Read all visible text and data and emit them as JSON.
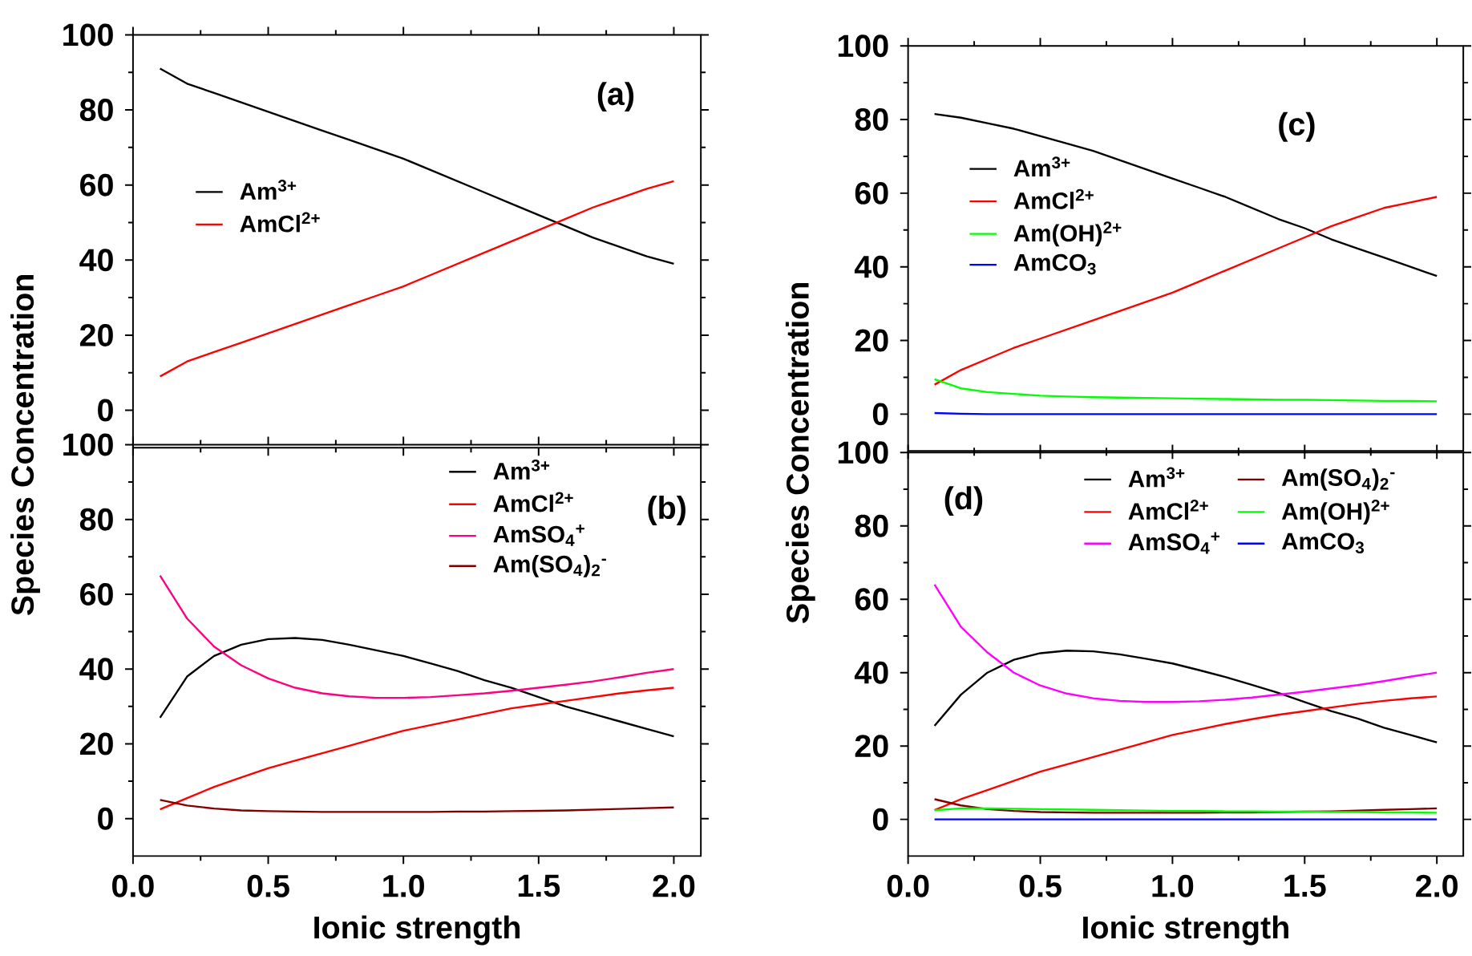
{
  "chart_data": [
    {
      "type": "line",
      "xlim": [
        0,
        2.1
      ],
      "ylim": [
        -10,
        100
      ],
      "tick_labels": "y",
      "legend": "left",
      "xticks": [
        {
          "value": 0,
          "label": null
        },
        {
          "value": 0.5,
          "label": null
        },
        {
          "value": 1,
          "label": null
        },
        {
          "value": 1.5,
          "label": null
        },
        {
          "value": 2,
          "label": null
        }
      ],
      "yticks": [
        0,
        20,
        40,
        60,
        80,
        100
      ],
      "annotations": [
        "(a)"
      ],
      "x": [
        0.1,
        0.2,
        0.3,
        0.4,
        0.5,
        0.6,
        0.7,
        0.8,
        0.9,
        1.0,
        1.1,
        1.2,
        1.3,
        1.4,
        1.5,
        1.6,
        1.7,
        1.8,
        1.9,
        2.0
      ],
      "series": [
        {
          "name": "Am$^{3+}$",
          "color": "#000000",
          "values": [
            91,
            87,
            84.5,
            82,
            79.5,
            77,
            74.5,
            72,
            69.5,
            67,
            64,
            61,
            58,
            55,
            52,
            49,
            46,
            43.5,
            41,
            39
          ]
        },
        {
          "name": "AmCl$^{2+}$",
          "color": "#ff0000",
          "values": [
            9,
            13,
            15.5,
            18,
            20.5,
            23,
            25.5,
            28,
            30.5,
            33,
            36,
            39,
            42,
            45,
            48,
            51,
            54,
            56.5,
            59,
            61
          ]
        }
      ]
    },
    {
      "type": "line",
      "xlim": [
        0,
        2.1
      ],
      "ylim": [
        -10,
        100
      ],
      "legend": "top right",
      "xlabel": "Ionic strength",
      "ylabel": "Species Concentration",
      "xticks": [
        {
          "value": 0,
          "label": "0.0"
        },
        {
          "value": 0.5,
          "label": "0.5"
        },
        {
          "value": 1,
          "label": "1.0"
        },
        {
          "value": 1.5,
          "label": "1.5"
        },
        {
          "value": 2,
          "label": "2.0"
        }
      ],
      "yticks": [
        0,
        20,
        40,
        60,
        80,
        100
      ],
      "annotations": [
        "(b)"
      ],
      "x": [
        0.1,
        0.2,
        0.3,
        0.4,
        0.5,
        0.6,
        0.7,
        0.8,
        0.9,
        1.0,
        1.1,
        1.2,
        1.3,
        1.4,
        1.5,
        1.6,
        1.7,
        1.8,
        1.9,
        2.0
      ],
      "series": [
        {
          "name": "Am$^{3+}$",
          "color": "#000000",
          "values": [
            27,
            38,
            43.5,
            46.5,
            48,
            48.3,
            47.8,
            46.5,
            45,
            43.5,
            41.5,
            39.5,
            37,
            35,
            32.5,
            30,
            28,
            26,
            24,
            22
          ]
        },
        {
          "name": "AmCl$^{2+}$",
          "color": "#ff0000",
          "values": [
            2.5,
            5.5,
            8.5,
            11,
            13.5,
            15.5,
            17.5,
            19.5,
            21.5,
            23.5,
            25,
            26.5,
            28,
            29.5,
            30.5,
            31.5,
            32.5,
            33.5,
            34.3,
            35
          ]
        },
        {
          "name": "AmSO$_{4}$$^{+}$",
          "color": "#ff0080",
          "values": [
            65,
            53.5,
            46,
            41,
            37.5,
            35,
            33.5,
            32.7,
            32.3,
            32.3,
            32.5,
            33,
            33.5,
            34.2,
            35,
            35.8,
            36.7,
            37.8,
            39,
            40
          ]
        },
        {
          "name": "Am(SO$_{4}$)$_{2}$$^{-}$",
          "color": "#800000",
          "values": [
            5,
            3.5,
            2.7,
            2.2,
            2,
            1.9,
            1.8,
            1.8,
            1.8,
            1.8,
            1.8,
            1.9,
            1.9,
            2,
            2.1,
            2.2,
            2.4,
            2.6,
            2.8,
            3
          ]
        }
      ]
    },
    {
      "type": "line",
      "xlim": [
        0,
        2.1
      ],
      "ylim": [
        -10,
        100
      ],
      "tick_labels": "y",
      "legend": "left",
      "xticks": [
        {
          "value": 0,
          "label": null
        },
        {
          "value": 0.5,
          "label": null
        },
        {
          "value": 1,
          "label": null
        },
        {
          "value": 1.5,
          "label": null
        },
        {
          "value": 2,
          "label": null
        }
      ],
      "yticks": [
        0,
        20,
        40,
        60,
        80,
        100
      ],
      "annotations": [
        "(c)"
      ],
      "x": [
        0.1,
        0.2,
        0.3,
        0.4,
        0.5,
        0.6,
        0.7,
        0.8,
        0.9,
        1.0,
        1.1,
        1.2,
        1.3,
        1.4,
        1.5,
        1.6,
        1.7,
        1.8,
        1.9,
        2.0
      ],
      "series": [
        {
          "name": "Am$^{3+}$",
          "color": "#000000",
          "values": [
            81.5,
            80.5,
            79,
            77.5,
            75.5,
            73.5,
            71.5,
            69,
            66.5,
            64,
            61.5,
            59,
            56,
            53,
            50.5,
            47.5,
            45,
            42.5,
            40,
            37.5
          ]
        },
        {
          "name": "AmCl$^{2+}$",
          "color": "#ff0000",
          "values": [
            8,
            12,
            15,
            18,
            20.5,
            23,
            25.5,
            28,
            30.5,
            33,
            36,
            39,
            42,
            45,
            48,
            51,
            53.5,
            56,
            57.5,
            59
          ]
        },
        {
          "name": "Am(OH)$^{2+}$",
          "color": "#00ff00",
          "values": [
            9.5,
            7,
            6,
            5.5,
            5,
            4.8,
            4.6,
            4.5,
            4.4,
            4.3,
            4.2,
            4.1,
            4,
            3.9,
            3.9,
            3.8,
            3.7,
            3.6,
            3.6,
            3.5
          ]
        },
        {
          "name": "AmCO$_{3}$",
          "color": "#0000ff",
          "values": [
            0.3,
            0.1,
            0,
            0,
            0,
            0,
            0,
            0,
            0,
            0,
            0,
            0,
            0,
            0,
            0,
            0,
            0,
            0,
            0,
            0
          ]
        }
      ]
    },
    {
      "type": "line",
      "xlim": [
        0,
        2.1
      ],
      "ylim": [
        -10,
        100
      ],
      "legend": "top",
      "xlabel": "Ionic strength",
      "ylabel": "Species Concentration",
      "xticks": [
        {
          "value": 0,
          "label": "0.0"
        },
        {
          "value": 0.5,
          "label": "0.5"
        },
        {
          "value": 1,
          "label": "1.0"
        },
        {
          "value": 1.5,
          "label": "1.5"
        },
        {
          "value": 2,
          "label": "2.0"
        }
      ],
      "yticks": [
        0,
        20,
        40,
        60,
        80,
        100
      ],
      "annotations": [
        "(d)"
      ],
      "x": [
        0.1,
        0.2,
        0.3,
        0.4,
        0.5,
        0.6,
        0.7,
        0.8,
        0.9,
        1.0,
        1.1,
        1.2,
        1.3,
        1.4,
        1.5,
        1.6,
        1.7,
        1.8,
        1.9,
        2.0
      ],
      "series": [
        {
          "name": "Am$^{3+}$",
          "color": "#000000",
          "values": [
            25.5,
            34,
            40,
            43.5,
            45.3,
            46,
            45.8,
            45,
            43.8,
            42.5,
            40.7,
            38.8,
            36.7,
            34.5,
            32,
            29.5,
            27.5,
            25,
            23,
            21
          ]
        },
        {
          "name": "AmCl$^{2+}$",
          "color": "#ff0000",
          "values": [
            2.5,
            5.5,
            8,
            10.5,
            13,
            15,
            17,
            19,
            21,
            23,
            24.5,
            26,
            27.3,
            28.5,
            29.5,
            30.5,
            31.5,
            32.3,
            33,
            33.5
          ]
        },
        {
          "name": "AmSO$_{4}$$^{+}$",
          "color": "#ff00ff",
          "values": [
            64,
            52.5,
            45.5,
            40,
            36.5,
            34.3,
            33,
            32.3,
            32,
            32,
            32.2,
            32.6,
            33.2,
            34,
            34.8,
            35.7,
            36.6,
            37.7,
            38.9,
            40
          ]
        },
        {
          "name": "Am(SO$_{4}$)$_{2}$$^{-}$",
          "color": "#800000",
          "values": [
            5.5,
            3.8,
            2.8,
            2.3,
            2,
            1.9,
            1.8,
            1.8,
            1.8,
            1.8,
            1.8,
            1.9,
            1.9,
            2,
            2.1,
            2.2,
            2.4,
            2.6,
            2.8,
            3
          ]
        },
        {
          "name": "Am(OH)$^{2+}$",
          "color": "#00ff00",
          "values": [
            2.5,
            3,
            3,
            2.9,
            2.8,
            2.7,
            2.6,
            2.5,
            2.4,
            2.3,
            2.3,
            2.2,
            2.2,
            2.1,
            2.1,
            2,
            2,
            1.9,
            1.9,
            1.8
          ]
        },
        {
          "name": "AmCO$_{3}$",
          "color": "#0000ff",
          "values": [
            0,
            0,
            0,
            0,
            0,
            0,
            0,
            0,
            0,
            0,
            0,
            0,
            0,
            0,
            0,
            0,
            0,
            0,
            0,
            0
          ]
        }
      ]
    }
  ]
}
